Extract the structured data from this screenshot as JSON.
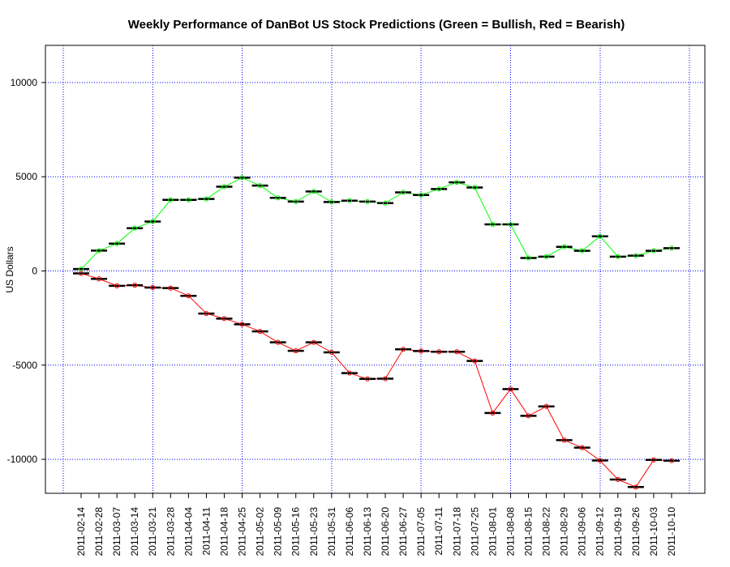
{
  "chart_data": {
    "type": "line",
    "title": "Weekly Performance of DanBot US Stock Predictions (Green = Bullish, Red = Bearish)",
    "xlabel": "",
    "ylabel": "US Dollars",
    "ylim": [
      -11900,
      11900
    ],
    "yticks": [
      -10000,
      -5000,
      0,
      5000,
      10000
    ],
    "grid": true,
    "categories": [
      "2011-02-14",
      "2011-02-28",
      "2011-03-07",
      "2011-03-14",
      "2011-03-21",
      "2011-03-28",
      "2011-04-04",
      "2011-04-11",
      "2011-04-18",
      "2011-04-25",
      "2011-05-02",
      "2011-05-09",
      "2011-05-16",
      "2011-05-23",
      "2011-05-31",
      "2011-06-06",
      "2011-06-13",
      "2011-06-20",
      "2011-06-27",
      "2011-07-05",
      "2011-07-11",
      "2011-07-18",
      "2011-07-25",
      "2011-08-01",
      "2011-08-08",
      "2011-08-15",
      "2011-08-22",
      "2011-08-29",
      "2011-09-06",
      "2011-09-12",
      "2011-09-19",
      "2011-09-26",
      "2011-10-03",
      "2011-10-10"
    ],
    "series": [
      {
        "color": "#00ff00",
        "values": [
          100,
          1080,
          1450,
          2270,
          2620,
          3770,
          3770,
          3820,
          4470,
          4950,
          4530,
          3880,
          3680,
          4220,
          3660,
          3730,
          3680,
          3600,
          4170,
          4030,
          4350,
          4700,
          4430,
          2470,
          2470,
          690,
          760,
          1280,
          1070,
          1840,
          760,
          810,
          1070,
          1210
        ]
      },
      {
        "color": "#ff0000",
        "values": [
          -130,
          -420,
          -790,
          -760,
          -880,
          -910,
          -1320,
          -2260,
          -2530,
          -2830,
          -3210,
          -3790,
          -4240,
          -3790,
          -4320,
          -5420,
          -5730,
          -5720,
          -4160,
          -4250,
          -4290,
          -4290,
          -4780,
          -7540,
          -6270,
          -7690,
          -7190,
          -8980,
          -9380,
          -10060,
          -11070,
          -11470,
          -10030,
          -10070
        ]
      }
    ]
  }
}
